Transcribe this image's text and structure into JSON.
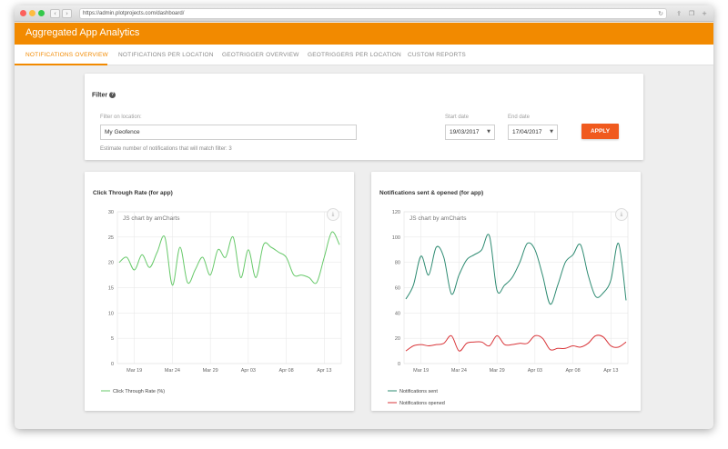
{
  "browser": {
    "url": "https://admin.plotprojects.com/dashboard/",
    "reload_icon": "reload-icon",
    "back_icon": "chevron-left-icon",
    "forward_icon": "chevron-right-icon"
  },
  "app": {
    "title": "Aggregated App Analytics",
    "accent_color": "#f28a00"
  },
  "tabs": [
    {
      "label": "NOTIFICATIONS OVERVIEW",
      "active": true
    },
    {
      "label": "NOTIFICATIONS PER LOCATION",
      "active": false
    },
    {
      "label": "GEOTRIGGER OVERVIEW",
      "active": false
    },
    {
      "label": "GEOTRIGGERS PER LOCATION",
      "active": false
    },
    {
      "label": "CUSTOM REPORTS",
      "active": false
    }
  ],
  "filter": {
    "title": "Filter",
    "location_label": "Filter on location:",
    "location_value": "My Geofence",
    "start_label": "Start date",
    "start_value": "19/03/2017",
    "end_label": "End date",
    "end_value": "17/04/2017",
    "apply_label": "APPLY",
    "estimate_text": "Estimate number of notifications that will match filter: 3"
  },
  "chart_data": [
    {
      "type": "line",
      "title": "Click Through Rate (for app)",
      "watermark": "JS chart by amCharts",
      "xlabel": "",
      "ylabel": "",
      "ylim": [
        0,
        30
      ],
      "yticks": [
        "0",
        "5",
        "10",
        "15",
        "20",
        "25",
        "30"
      ],
      "xticks": [
        "Mar 19",
        "Mar 24",
        "Mar 29",
        "Apr 03",
        "Apr 08",
        "Apr 13"
      ],
      "x": [
        "2017-03-17",
        "2017-03-18",
        "2017-03-19",
        "2017-03-20",
        "2017-03-21",
        "2017-03-22",
        "2017-03-23",
        "2017-03-24",
        "2017-03-25",
        "2017-03-26",
        "2017-03-27",
        "2017-03-28",
        "2017-03-29",
        "2017-03-30",
        "2017-03-31",
        "2017-04-01",
        "2017-04-02",
        "2017-04-03",
        "2017-04-04",
        "2017-04-05",
        "2017-04-06",
        "2017-04-07",
        "2017-04-08",
        "2017-04-09",
        "2017-04-10",
        "2017-04-11",
        "2017-04-12",
        "2017-04-13",
        "2017-04-14",
        "2017-04-15"
      ],
      "series": [
        {
          "name": "Click Through Rate (%)",
          "color": "#67c96a",
          "values": [
            20.0,
            21.0,
            18.5,
            21.5,
            19.0,
            22.0,
            25.0,
            15.5,
            23.0,
            16.0,
            18.5,
            21.0,
            17.5,
            22.5,
            21.0,
            25.0,
            17.0,
            22.5,
            17.0,
            23.5,
            23.0,
            22.0,
            21.0,
            17.5,
            17.5,
            17.0,
            16.0,
            21.0,
            26.0,
            23.5
          ]
        }
      ],
      "grid": true,
      "legend": "bottom-left"
    },
    {
      "type": "line",
      "title": "Notifications sent & opened (for app)",
      "watermark": "JS chart by amCharts",
      "xlabel": "",
      "ylabel": "",
      "ylim": [
        0,
        120
      ],
      "yticks": [
        "0",
        "20",
        "40",
        "60",
        "80",
        "100",
        "120"
      ],
      "xticks": [
        "Mar 19",
        "Mar 24",
        "Mar 29",
        "Apr 03",
        "Apr 08",
        "Apr 13"
      ],
      "x": [
        "2017-03-17",
        "2017-03-18",
        "2017-03-19",
        "2017-03-20",
        "2017-03-21",
        "2017-03-22",
        "2017-03-23",
        "2017-03-24",
        "2017-03-25",
        "2017-03-26",
        "2017-03-27",
        "2017-03-28",
        "2017-03-29",
        "2017-03-30",
        "2017-03-31",
        "2017-04-01",
        "2017-04-02",
        "2017-04-03",
        "2017-04-04",
        "2017-04-05",
        "2017-04-06",
        "2017-04-07",
        "2017-04-08",
        "2017-04-09",
        "2017-04-10",
        "2017-04-11",
        "2017-04-12",
        "2017-04-13",
        "2017-04-14",
        "2017-04-15"
      ],
      "series": [
        {
          "name": "Notifications sent",
          "color": "#2e8b72",
          "values": [
            51,
            62,
            85,
            70,
            92,
            84,
            55,
            70,
            82,
            86,
            90,
            101,
            58,
            62,
            68,
            80,
            95,
            90,
            70,
            47,
            62,
            80,
            86,
            94,
            70,
            53,
            56,
            66,
            95,
            50
          ]
        },
        {
          "name": "Notifications opened",
          "color": "#d9363a",
          "values": [
            10,
            14,
            15,
            14,
            15,
            16,
            22,
            10,
            16,
            17,
            17,
            14,
            22,
            15,
            15,
            16,
            16,
            22,
            20,
            11,
            12,
            12,
            14,
            13,
            16,
            22,
            21,
            14,
            13,
            17
          ]
        }
      ],
      "grid": true,
      "legend": "bottom-left"
    }
  ]
}
